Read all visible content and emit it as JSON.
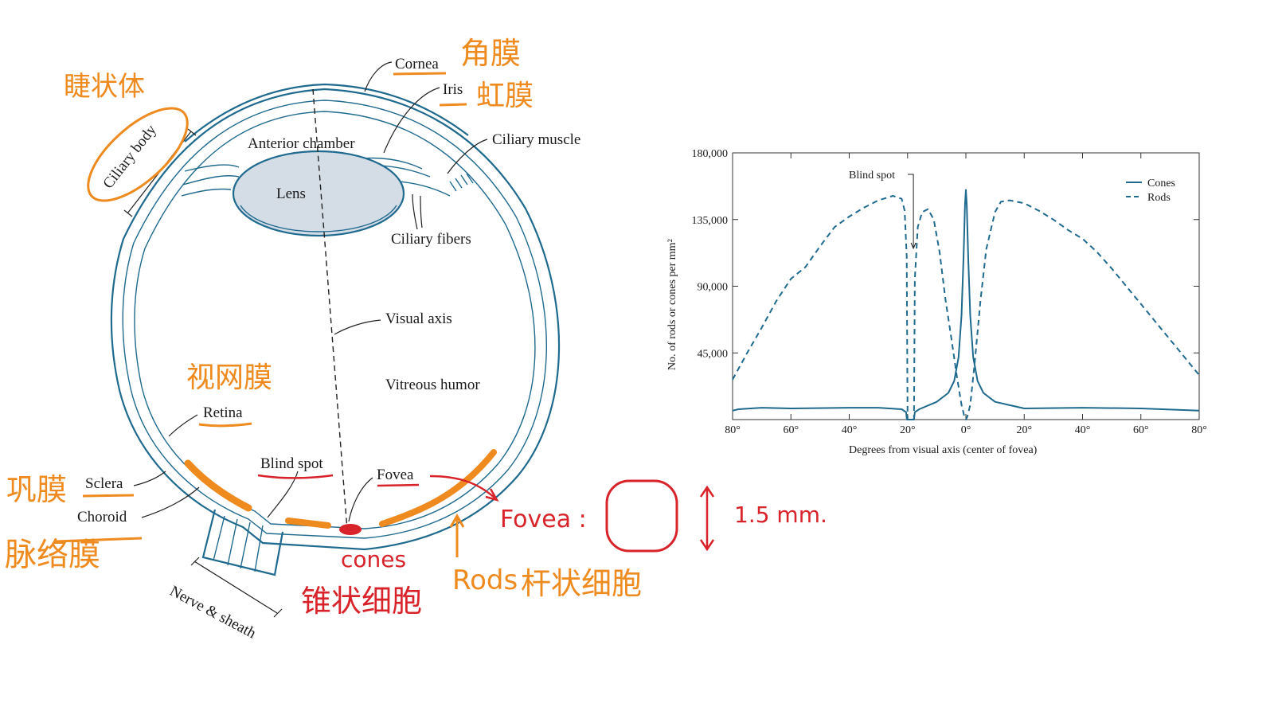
{
  "diagram": {
    "labels": {
      "cornea": "Cornea",
      "iris": "Iris",
      "anterior_chamber": "Anterior chamber",
      "ciliary_muscle": "Ciliary muscle",
      "ciliary_body": "Ciliary body",
      "lens": "Lens",
      "ciliary_fibers": "Ciliary fibers",
      "visual_axis": "Visual axis",
      "vitreous_humor": "Vitreous humor",
      "retina": "Retina",
      "sclera": "Sclera",
      "choroid": "Choroid",
      "blind_spot": "Blind spot",
      "fovea": "Fovea",
      "nerve_sheath": "Nerve & sheath"
    },
    "annotations": {
      "cornea_cn": "角膜",
      "iris_cn": "虹膜",
      "ciliary_body_cn": "睫状体",
      "retina_cn": "视网膜",
      "sclera_cn": "巩膜",
      "choroid_cn": "脉络膜",
      "cones": "cones",
      "cones_cn": "锥状细胞",
      "rods": "Rods",
      "rods_cn": "杆状细胞",
      "fovea_note": "Fovea :",
      "size_note": "1.5 mm."
    },
    "colors": {
      "anatomy_line": "#1f6a8e",
      "lens_fill": "#d4dce6",
      "orange_annotation": "#ee8a1e",
      "red_annotation": "#d8232a"
    }
  },
  "chart_data": {
    "type": "line",
    "xlabel": "Degrees from visual axis (center of fovea)",
    "ylabel": "No. of rods or cones per mm²",
    "xlim": [
      -80,
      80
    ],
    "ylim": [
      0,
      180000
    ],
    "xticks": [
      -80,
      -60,
      -40,
      -20,
      0,
      20,
      40,
      60,
      80
    ],
    "xtick_labels": [
      "80°",
      "60°",
      "40°",
      "20°",
      "0°",
      "20°",
      "40°",
      "60°",
      "80°"
    ],
    "yticks": [
      45000,
      90000,
      135000,
      180000
    ],
    "ytick_labels": [
      "45,000",
      "90,000",
      "135,000",
      "180,000"
    ],
    "legend_position": "top-right",
    "annotation": "Blind spot",
    "annotation_x": -18,
    "series": [
      {
        "name": "Cones",
        "style": "solid",
        "color": "#1f6a8e",
        "x": [
          -80,
          -78,
          -70,
          -60,
          -40,
          -30,
          -22,
          -20.5,
          -20.2,
          -17.8,
          -17.5,
          -16,
          -10,
          -6,
          -4,
          -2.5,
          -1.5,
          -0.8,
          -0.3,
          0,
          0.3,
          0.8,
          1.5,
          2.5,
          4,
          6,
          10,
          20,
          40,
          60,
          80
        ],
        "y": [
          6000,
          7000,
          8000,
          7500,
          8000,
          8000,
          7000,
          5000,
          0,
          0,
          5000,
          7000,
          12000,
          18000,
          26000,
          42000,
          70000,
          110000,
          145000,
          155000,
          145000,
          110000,
          70000,
          42000,
          26000,
          18000,
          12000,
          7500,
          8000,
          7500,
          6000
        ]
      },
      {
        "name": "Rods",
        "style": "dashed",
        "color": "#1f6a8e",
        "x": [
          -80,
          -75,
          -70,
          -65,
          -60,
          -55,
          -50,
          -45,
          -40,
          -35,
          -30,
          -25,
          -22,
          -21,
          -20.3,
          -20,
          -17.8,
          -17.5,
          -16.5,
          -15,
          -13,
          -11,
          -9,
          -7,
          -5,
          -3,
          -1.5,
          -0.5,
          0,
          0.5,
          1.5,
          3,
          5,
          7,
          10,
          12,
          15,
          20,
          25,
          30,
          35,
          40,
          45,
          50,
          55,
          60,
          65,
          70,
          75,
          80
        ],
        "y": [
          27000,
          45000,
          62000,
          80000,
          95000,
          103000,
          117000,
          130000,
          137000,
          143000,
          148000,
          151000,
          149000,
          141000,
          110000,
          0,
          0,
          95000,
          130000,
          140000,
          142000,
          135000,
          113000,
          81000,
          55000,
          28000,
          10000,
          2000,
          0,
          2000,
          10000,
          38000,
          80000,
          115000,
          140000,
          147000,
          148000,
          146000,
          141000,
          135000,
          128000,
          122000,
          113000,
          102000,
          90000,
          78000,
          66000,
          54000,
          42000,
          30000
        ]
      }
    ]
  }
}
